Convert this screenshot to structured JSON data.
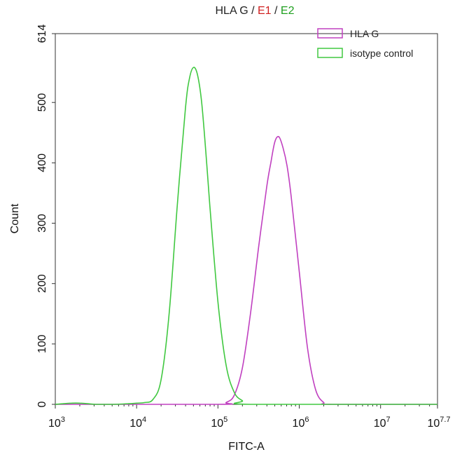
{
  "title": {
    "prefix": "HLA G",
    "sep1": " / ",
    "e1": "E1",
    "sep2": " / ",
    "e2": "E2",
    "prefix_color": "#222222",
    "e1_color": "#d02020",
    "e2_color": "#20a020"
  },
  "chart_data": {
    "type": "line",
    "title": "HLA G / E1 / E2",
    "xlabel": "FITC-A",
    "ylabel": "Count",
    "x_scale": "log10",
    "xlim": [
      3,
      7.7
    ],
    "ylim": [
      0,
      614
    ],
    "x_tick_labels": [
      {
        "base": "10",
        "exp": "3",
        "value": 3
      },
      {
        "base": "10",
        "exp": "4",
        "value": 4
      },
      {
        "base": "10",
        "exp": "5",
        "value": 5
      },
      {
        "base": "10",
        "exp": "6",
        "value": 6
      },
      {
        "base": "10",
        "exp": "7",
        "value": 7
      },
      {
        "base": "10",
        "exp": "7.7",
        "value": 7.7
      }
    ],
    "y_ticks": [
      0,
      100,
      200,
      300,
      400,
      500,
      614
    ],
    "y_tick_labels": [
      "0",
      "100",
      "200",
      "300",
      "400",
      "500",
      "614"
    ],
    "grid": false,
    "legend_position": "top-right",
    "series": [
      {
        "name": "HLA G",
        "color": "#c040c0",
        "log10_x": [
          3.0,
          5.0,
          5.1,
          5.2,
          5.3,
          5.4,
          5.5,
          5.6,
          5.65,
          5.7,
          5.75,
          5.8,
          5.85,
          5.9,
          6.0,
          6.1,
          6.2,
          6.3,
          6.4,
          7.7
        ],
        "y": [
          0,
          0,
          3,
          15,
          60,
          150,
          260,
          360,
          400,
          435,
          443,
          425,
          395,
          345,
          220,
          95,
          25,
          3,
          0,
          0
        ]
      },
      {
        "name": "isotype control",
        "color": "#40c840",
        "log10_x": [
          3.0,
          3.1,
          3.2,
          3.3,
          3.4,
          3.5,
          3.7,
          3.9,
          4.0,
          4.1,
          4.2,
          4.3,
          4.4,
          4.5,
          4.6,
          4.65,
          4.7,
          4.75,
          4.8,
          4.85,
          4.9,
          5.0,
          5.1,
          5.2,
          5.3,
          5.4,
          7.7
        ],
        "y": [
          0,
          1,
          2,
          2,
          1,
          0,
          0,
          1,
          2,
          3,
          8,
          40,
          150,
          330,
          490,
          540,
          558,
          545,
          500,
          420,
          330,
          170,
          65,
          20,
          6,
          0,
          0
        ]
      }
    ]
  }
}
